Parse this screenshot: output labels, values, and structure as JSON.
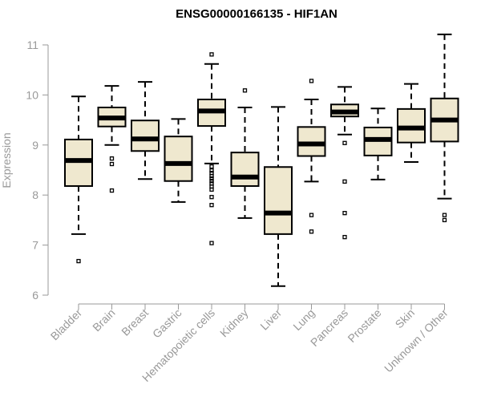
{
  "chart_data": {
    "type": "box",
    "title": "ENSG00000166135 - HIF1AN",
    "xlabel": "",
    "ylabel": "Expression",
    "ylim": [
      6,
      11.25
    ],
    "yticks": [
      6,
      7,
      8,
      9,
      10,
      11
    ],
    "grid": false,
    "box_fill": "#EFE8CF",
    "categories": [
      "Bladder",
      "Brain",
      "Breast",
      "Gastric",
      "Hematopoietic cells",
      "Kidney",
      "Liver",
      "Lung",
      "Pancreas",
      "Prostate",
      "Skin",
      "Unknown / Other"
    ],
    "boxes": [
      {
        "category": "Bladder",
        "min": 7.22,
        "q1": 8.18,
        "median": 8.69,
        "q3": 9.11,
        "max": 9.97,
        "outliers": [
          6.68
        ]
      },
      {
        "category": "Brain",
        "min": 9.0,
        "q1": 9.37,
        "median": 9.54,
        "q3": 9.75,
        "max": 10.18,
        "outliers": [
          8.73,
          8.62,
          8.09
        ]
      },
      {
        "category": "Breast",
        "min": 8.32,
        "q1": 8.88,
        "median": 9.12,
        "q3": 9.49,
        "max": 10.26,
        "outliers": []
      },
      {
        "category": "Gastric",
        "min": 7.86,
        "q1": 8.28,
        "median": 8.63,
        "q3": 9.17,
        "max": 9.52,
        "outliers": []
      },
      {
        "category": "Hematopoietic cells",
        "min": 8.63,
        "q1": 9.38,
        "median": 9.68,
        "q3": 9.91,
        "max": 10.62,
        "outliers": [
          10.81,
          8.57,
          8.49,
          8.44,
          8.38,
          8.33,
          8.28,
          8.23,
          8.17,
          8.11,
          7.96,
          7.8,
          7.04
        ]
      },
      {
        "category": "Kidney",
        "min": 7.54,
        "q1": 8.18,
        "median": 8.36,
        "q3": 8.85,
        "max": 9.75,
        "outliers": [
          10.09
        ]
      },
      {
        "category": "Liver",
        "min": 6.18,
        "q1": 7.22,
        "median": 7.64,
        "q3": 8.56,
        "max": 9.76,
        "outliers": []
      },
      {
        "category": "Lung",
        "min": 8.27,
        "q1": 8.78,
        "median": 9.02,
        "q3": 9.36,
        "max": 9.91,
        "outliers": [
          10.28,
          7.6,
          7.27
        ]
      },
      {
        "category": "Pancreas",
        "min": 9.21,
        "q1": 9.57,
        "median": 9.66,
        "q3": 9.81,
        "max": 10.16,
        "outliers": [
          9.04,
          8.27,
          7.64,
          7.16
        ]
      },
      {
        "category": "Prostate",
        "min": 8.31,
        "q1": 8.79,
        "median": 9.11,
        "q3": 9.35,
        "max": 9.73,
        "outliers": []
      },
      {
        "category": "Skin",
        "min": 8.66,
        "q1": 9.05,
        "median": 9.34,
        "q3": 9.72,
        "max": 10.22,
        "outliers": []
      },
      {
        "category": "Unknown / Other",
        "min": 7.93,
        "q1": 9.07,
        "median": 9.5,
        "q3": 9.93,
        "max": 11.21,
        "outliers": [
          7.6,
          7.5
        ]
      }
    ]
  }
}
